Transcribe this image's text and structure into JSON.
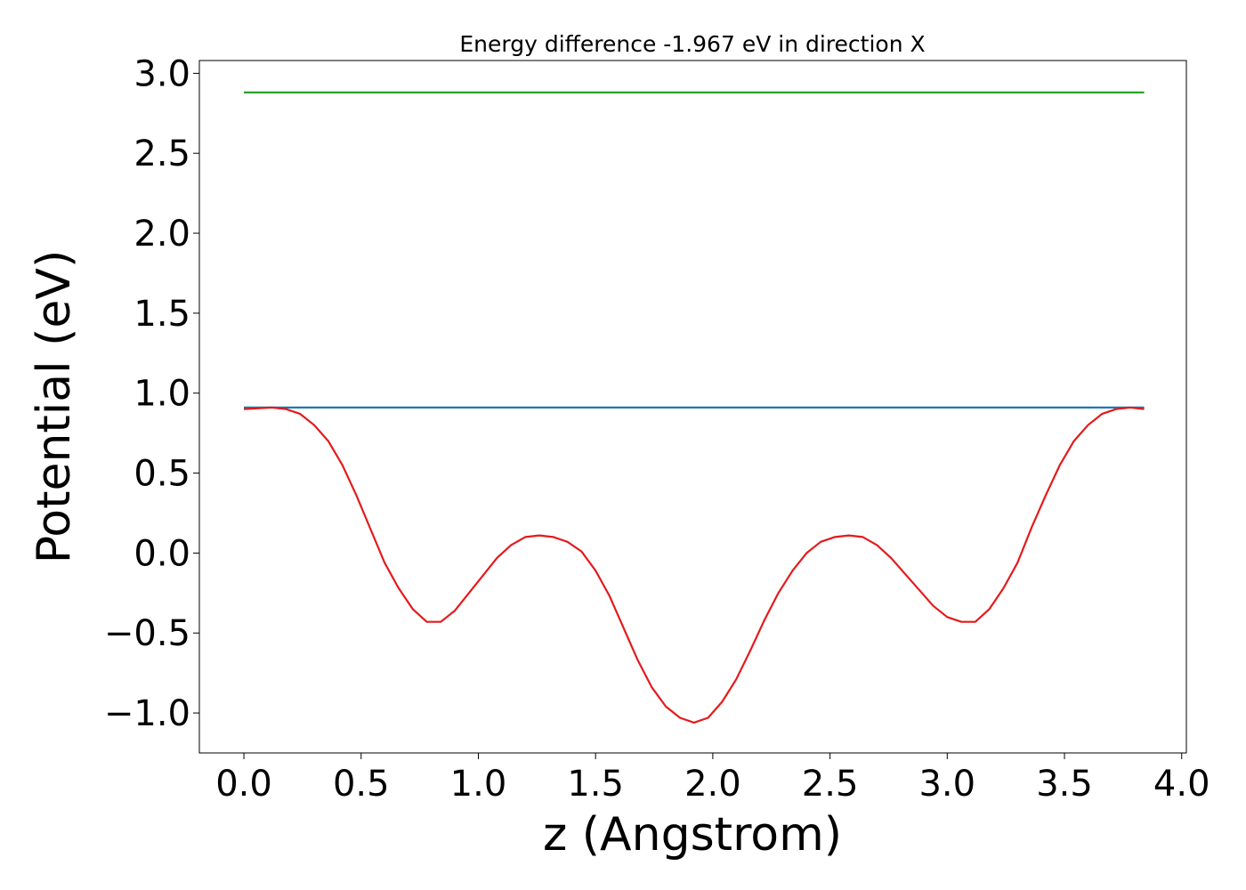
{
  "chart_data": {
    "type": "line",
    "title": "Energy difference -1.967 eV in direction X",
    "xlabel": "z (Angstrom)",
    "ylabel": "Potential (eV)",
    "xlim": [
      -0.19,
      4.02
    ],
    "ylim": [
      -1.25,
      3.08
    ],
    "xticks": [
      0.0,
      0.5,
      1.0,
      1.5,
      2.0,
      2.5,
      3.0,
      3.5,
      4.0
    ],
    "xtick_labels": [
      "0.0",
      "0.5",
      "1.0",
      "1.5",
      "2.0",
      "2.5",
      "3.0",
      "3.5",
      "4.0"
    ],
    "yticks": [
      3.0,
      2.5,
      2.0,
      1.5,
      1.0,
      0.5,
      0.0,
      -0.5,
      -1.0
    ],
    "ytick_labels": [
      "3.0",
      "2.5",
      "2.0",
      "1.5",
      "1.0",
      "0.5",
      "0.0",
      "−0.5",
      "−1.0"
    ],
    "grid": false,
    "series": [
      {
        "color": "#2ca02c",
        "x": [
          0.0,
          3.84
        ],
        "y": [
          2.88,
          2.88
        ]
      },
      {
        "color": "#1f77b4",
        "x": [
          0.0,
          3.84
        ],
        "y": [
          0.91,
          0.91
        ]
      },
      {
        "color": "#e41a1c",
        "x": [
          0.0,
          0.06,
          0.12,
          0.18,
          0.24,
          0.3,
          0.36,
          0.42,
          0.48,
          0.54,
          0.6,
          0.66,
          0.72,
          0.78,
          0.84,
          0.9,
          0.96,
          1.02,
          1.08,
          1.14,
          1.2,
          1.26,
          1.32,
          1.38,
          1.44,
          1.5,
          1.56,
          1.62,
          1.68,
          1.74,
          1.8,
          1.86,
          1.92,
          1.98,
          2.04,
          2.1,
          2.16,
          2.22,
          2.28,
          2.34,
          2.4,
          2.46,
          2.52,
          2.58,
          2.64,
          2.7,
          2.76,
          2.82,
          2.88,
          2.94,
          3.0,
          3.06,
          3.12,
          3.18,
          3.24,
          3.3,
          3.36,
          3.42,
          3.48,
          3.54,
          3.6,
          3.66,
          3.72,
          3.78,
          3.84
        ],
        "y": [
          0.9,
          0.905,
          0.91,
          0.9,
          0.87,
          0.8,
          0.7,
          0.55,
          0.36,
          0.15,
          -0.06,
          -0.22,
          -0.35,
          -0.43,
          -0.43,
          -0.36,
          -0.25,
          -0.14,
          -0.03,
          0.05,
          0.1,
          0.11,
          0.1,
          0.07,
          0.01,
          -0.11,
          -0.27,
          -0.47,
          -0.67,
          -0.84,
          -0.96,
          -1.03,
          -1.06,
          -1.03,
          -0.93,
          -0.79,
          -0.61,
          -0.42,
          -0.25,
          -0.11,
          0.0,
          0.07,
          0.1,
          0.11,
          0.1,
          0.05,
          -0.03,
          -0.13,
          -0.23,
          -0.33,
          -0.4,
          -0.43,
          -0.43,
          -0.35,
          -0.22,
          -0.06,
          0.16,
          0.36,
          0.55,
          0.7,
          0.8,
          0.87,
          0.9,
          0.91,
          0.9
        ]
      }
    ]
  }
}
